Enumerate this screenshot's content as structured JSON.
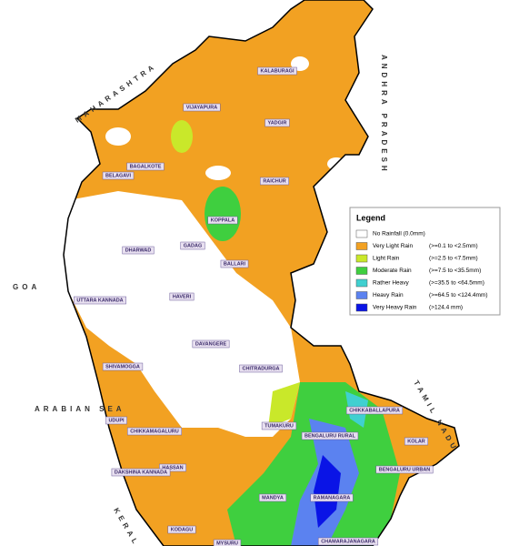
{
  "legend": {
    "title": "Legend",
    "items": [
      {
        "label": "No Rainfall (0.0mm)",
        "color": "#ffffff"
      },
      {
        "label": "Very Light Rain",
        "range": "(>=0.1 to <2.5mm)",
        "color": "#f2a122"
      },
      {
        "label": "Light Rain",
        "range": "(>=2.5 to <7.5mm)",
        "color": "#c9e82a"
      },
      {
        "label": "Moderate Rain",
        "range": "(>=7.5 to <35.5mm)",
        "color": "#3fcf3f"
      },
      {
        "label": "Rather Heavy",
        "range": "(>=35.5 to <64.5mm)",
        "color": "#40d0d0"
      },
      {
        "label": "Heavy Rain",
        "range": "(>=64.5 to <124.4mm)",
        "color": "#5b82f0"
      },
      {
        "label": "Very Heavy Rain",
        "range": "(>124.4 mm)",
        "color": "#0a14e6"
      }
    ]
  },
  "regions": [
    "MAHARASHTRA",
    "GOA",
    "ARABIAN SEA",
    "ANDHRA PRADESH",
    "TAMIL NADU",
    "KERALA"
  ],
  "districts": [
    "KALABURAGI",
    "VIJAYAPURA",
    "YADGIR",
    "BAGALKOTE",
    "BELAGAVI",
    "RAICHUR",
    "KOPPALA",
    "GADAG",
    "DHARWAD",
    "BALLARI",
    "UTTARA KANNADA",
    "HAVERI",
    "DAVANGERE",
    "CHITRADURGA",
    "SHIVAMOGGA",
    "TUMAKURU",
    "UDUPI",
    "CHIKKABALLAPURA",
    "CHIKKAMAGALURU",
    "BENGALURU RURAL",
    "KOLAR",
    "HASSAN",
    "DAKSHINA KANNADA",
    "BENGALURU URBAN",
    "MANDYA",
    "RAMANAGARA",
    "KODAGU",
    "MYSURU",
    "CHAMARAJANAGARA"
  ]
}
